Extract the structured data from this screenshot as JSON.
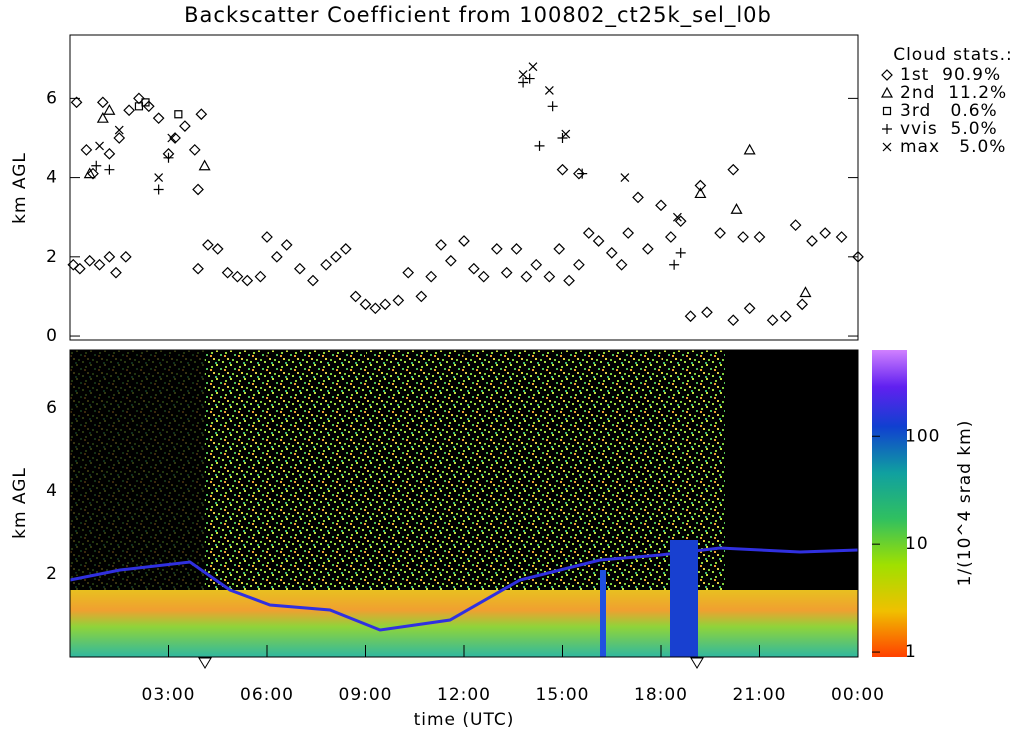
{
  "chart_data": [
    {
      "type": "scatter",
      "title": "Backscatter Coefficient from 100802_ct25k_sel_l0b",
      "ylabel": "km AGL",
      "xlim": [
        0,
        24
      ],
      "ylim": [
        -0.1,
        7.6
      ],
      "yticks": [
        0,
        2,
        4,
        6
      ],
      "legend_title": "Cloud stats.:",
      "legend": "outside upper right",
      "series": [
        {
          "name": "1st  90.9%",
          "marker": "diamond",
          "color": "#000000",
          "x": [
            0.1,
            0.3,
            0.6,
            0.9,
            1.2,
            1.4,
            1.7,
            0.2,
            0.5,
            0.7,
            1.0,
            1.2,
            1.5,
            1.8,
            2.1,
            2.4,
            2.7,
            3.0,
            3.2,
            3.5,
            3.8,
            4.0,
            3.9,
            3.9,
            4.2,
            4.5,
            4.8,
            5.1,
            5.4,
            5.8,
            6.0,
            6.3,
            6.6,
            7.0,
            7.4,
            7.8,
            8.1,
            8.4,
            8.7,
            9.0,
            9.3,
            9.6,
            10.0,
            10.3,
            10.7,
            11.0,
            11.3,
            11.6,
            12.0,
            12.3,
            12.6,
            13.0,
            13.3,
            13.6,
            13.9,
            14.2,
            14.6,
            14.9,
            15.2,
            15.5,
            15.8,
            16.1,
            16.5,
            16.8,
            17.0,
            17.3,
            17.6,
            18.0,
            18.3,
            18.6,
            18.9,
            19.2,
            19.4,
            19.8,
            20.2,
            20.5,
            20.7,
            21.0,
            21.4,
            21.8,
            22.1,
            22.3,
            22.6,
            23.0,
            23.5,
            24.0,
            20.2,
            15.0,
            15.5
          ],
          "y": [
            1.8,
            1.7,
            1.9,
            1.8,
            2.0,
            1.6,
            2.0,
            5.9,
            4.7,
            4.1,
            5.9,
            4.6,
            5.0,
            5.7,
            6.0,
            5.8,
            5.5,
            4.6,
            5.0,
            5.3,
            4.7,
            5.6,
            3.7,
            1.7,
            2.3,
            2.2,
            1.6,
            1.5,
            1.4,
            1.5,
            2.5,
            2.0,
            2.3,
            1.7,
            1.4,
            1.8,
            2.0,
            2.2,
            1.0,
            0.8,
            0.7,
            0.8,
            0.9,
            1.6,
            1.0,
            1.5,
            2.3,
            1.9,
            2.4,
            1.7,
            1.5,
            2.2,
            1.6,
            2.2,
            1.5,
            1.8,
            1.5,
            2.2,
            1.4,
            1.8,
            2.6,
            2.4,
            2.1,
            1.8,
            2.6,
            3.5,
            2.2,
            3.3,
            2.5,
            2.9,
            0.5,
            3.8,
            0.6,
            2.6,
            0.4,
            2.5,
            0.7,
            2.5,
            0.4,
            0.5,
            2.8,
            0.8,
            2.4,
            2.6,
            2.5,
            2.0,
            4.2,
            4.2,
            4.1
          ]
        },
        {
          "name": "2nd  11.2%",
          "marker": "triangle",
          "color": "#000000",
          "x": [
            0.6,
            1.0,
            1.2,
            4.1,
            19.2,
            20.3,
            20.7,
            22.4
          ],
          "y": [
            4.1,
            5.5,
            5.7,
            4.3,
            3.6,
            3.2,
            4.7,
            1.1
          ]
        },
        {
          "name": "3rd   0.6%",
          "marker": "square",
          "color": "#000000",
          "x": [
            2.1,
            2.3,
            3.3
          ],
          "y": [
            5.8,
            5.9,
            5.6
          ]
        },
        {
          "name": "vvis  5.0%",
          "marker": "plus",
          "color": "#000000",
          "x": [
            0.8,
            1.2,
            2.7,
            3.0,
            13.8,
            14.0,
            14.3,
            14.7,
            15.0,
            15.6,
            18.4,
            18.6
          ],
          "y": [
            4.3,
            4.2,
            3.7,
            4.5,
            6.4,
            6.5,
            4.8,
            5.8,
            5.0,
            4.1,
            1.8,
            2.1
          ]
        },
        {
          "name": "max   5.0%",
          "marker": "x",
          "color": "#000000",
          "x": [
            0.9,
            1.5,
            2.7,
            3.1,
            13.8,
            14.1,
            14.6,
            15.1,
            16.9,
            18.5
          ],
          "y": [
            4.8,
            5.2,
            4.0,
            5.0,
            6.6,
            6.8,
            6.2,
            5.1,
            4.0,
            3.0
          ]
        }
      ]
    },
    {
      "type": "heatmap",
      "ylabel": "km AGL",
      "xlabel": "time (UTC)",
      "xlim": [
        0,
        24
      ],
      "xticks": [
        {
          "value": 3,
          "label": "03:00"
        },
        {
          "value": 6,
          "label": "06:00"
        },
        {
          "value": 9,
          "label": "09:00"
        },
        {
          "value": 12,
          "label": "12:00"
        },
        {
          "value": 15,
          "label": "15:00"
        },
        {
          "value": 18,
          "label": "18:00"
        },
        {
          "value": 21,
          "label": "21:00"
        },
        {
          "value": 24,
          "label": "00:00"
        }
      ],
      "ylim": [
        0,
        7.4
      ],
      "yticks": [
        2,
        4,
        6
      ],
      "colorbar": {
        "label": "1/(10^4 srad km)",
        "lim": [
          0.9,
          630
        ],
        "log": true,
        "ticks": [
          1,
          10,
          100
        ]
      }
    }
  ]
}
